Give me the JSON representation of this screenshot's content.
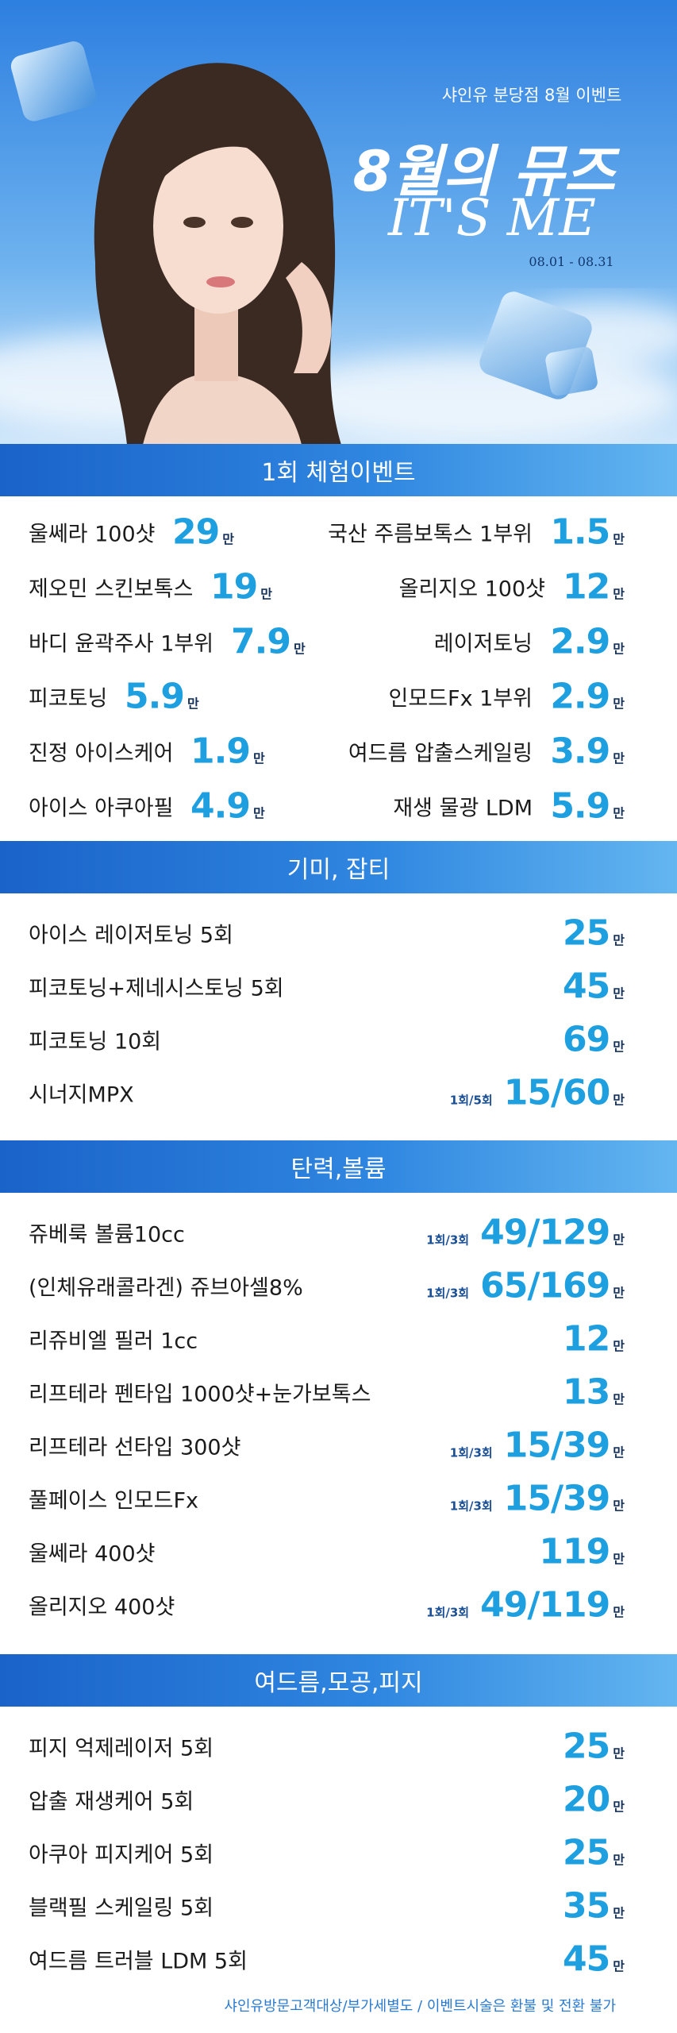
{
  "hero": {
    "subtitle": "샤인유 분당점 8월 이벤트",
    "title": "8월의 뮤즈",
    "title2": "IT'S ME",
    "period": "08.01 - 08.31"
  },
  "sections": [
    {
      "title": "1회 체험이벤트",
      "items": [
        {
          "name": "울쎄라 100샷",
          "price": "29",
          "unit": "만"
        },
        {
          "name": "국산 주름보톡스 1부위",
          "price": "1.5",
          "unit": "만"
        },
        {
          "name": "제오민 스킨보톡스",
          "price": "19",
          "unit": "만"
        },
        {
          "name": "올리지오 100샷",
          "price": "12",
          "unit": "만"
        },
        {
          "name": "바디 윤곽주사 1부위",
          "price": "7.9",
          "unit": "만"
        },
        {
          "name": "레이저토닝",
          "price": "2.9",
          "unit": "만"
        },
        {
          "name": "피코토닝",
          "price": "5.9",
          "unit": "만"
        },
        {
          "name": "인모드Fx 1부위",
          "price": "2.9",
          "unit": "만"
        },
        {
          "name": "진정 아이스케어",
          "price": "1.9",
          "unit": "만"
        },
        {
          "name": "여드름 압출스케일링",
          "price": "3.9",
          "unit": "만"
        },
        {
          "name": "아이스 아쿠아필",
          "price": "4.9",
          "unit": "만"
        },
        {
          "name": "재생 물광 LDM",
          "price": "5.9",
          "unit": "만"
        }
      ]
    },
    {
      "title": "기미, 잡티",
      "items": [
        {
          "name": "아이스 레이저토닝 5회",
          "price": "25",
          "unit": "만"
        },
        {
          "name": "피코토닝+제네시스토닝 5회",
          "price": "45",
          "unit": "만"
        },
        {
          "name": "피코토닝 10회",
          "price": "69",
          "unit": "만"
        },
        {
          "name": "시너지MPX",
          "note": "1회/5회",
          "price": "15/60",
          "unit": "만"
        }
      ]
    },
    {
      "title": "탄력,볼륨",
      "items": [
        {
          "name": "쥬베룩 볼륨10cc",
          "note": "1회/3회",
          "price": "49/129",
          "unit": "만"
        },
        {
          "name": "(인체유래콜라겐) 쥬브아셀8%",
          "note": "1회/3회",
          "price": "65/169",
          "unit": "만"
        },
        {
          "name": "리쥬비엘 필러 1cc",
          "price": "12",
          "unit": "만"
        },
        {
          "name": "리프테라 펜타입 1000샷+눈가보톡스",
          "price": "13",
          "unit": "만"
        },
        {
          "name": "리프테라 선타입 300샷",
          "note": "1회/3회",
          "price": "15/39",
          "unit": "만"
        },
        {
          "name": "풀페이스 인모드Fx",
          "note": "1회/3회",
          "price": "15/39",
          "unit": "만"
        },
        {
          "name": "울쎄라 400샷",
          "price": "119",
          "unit": "만"
        },
        {
          "name": "올리지오 400샷",
          "note": "1회/3회",
          "price": "49/119",
          "unit": "만"
        }
      ]
    },
    {
      "title": "여드름,모공,피지",
      "items": [
        {
          "name": "피지 억제레이저 5회",
          "price": "25",
          "unit": "만"
        },
        {
          "name": "압출 재생케어 5회",
          "price": "20",
          "unit": "만"
        },
        {
          "name": "아쿠아 피지케어 5회",
          "price": "25",
          "unit": "만"
        },
        {
          "name": "블랙필 스케일링 5회",
          "price": "35",
          "unit": "만"
        },
        {
          "name": "여드름 트러블 LDM 5회",
          "price": "45",
          "unit": "만"
        }
      ]
    }
  ],
  "footer": "샤인유방문고객대상/부가세별도 / 이벤트시술은 환불 및 전환 불가"
}
